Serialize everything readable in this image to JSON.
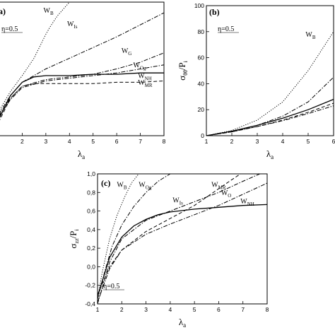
{
  "chart_data": [
    {
      "id": "a",
      "type": "line",
      "panel_label": "a)",
      "xlim": [
        1,
        8
      ],
      "ylim": [
        0,
        1
      ],
      "x_ticks": [
        "2",
        "3",
        "4",
        "5",
        "6",
        "7",
        "8"
      ],
      "y_ticks": [],
      "xlabel_main": "λ",
      "xlabel_sub": "a",
      "ylabel_main": "",
      "ylabel_sub": "",
      "annotation": "η=0.5",
      "series": [
        {
          "name": "W",
          "sub": "B",
          "style": "dotted",
          "label_at": [
            2.9,
            0.92
          ],
          "x": [
            1,
            1.5,
            2,
            2.5,
            3,
            3.2,
            3.5,
            3.8,
            4.0,
            4.2
          ],
          "y": [
            0.18,
            0.33,
            0.45,
            0.58,
            0.76,
            0.82,
            0.9,
            0.96,
            1.0,
            1.03
          ]
        },
        {
          "name": "W",
          "sub": "Is",
          "style": "dashdot",
          "label_at": [
            3.9,
            0.82
          ],
          "x": [
            1,
            1.5,
            2,
            3,
            4,
            5,
            6,
            7,
            8
          ],
          "y": [
            0.16,
            0.3,
            0.4,
            0.5,
            0.58,
            0.66,
            0.74,
            0.83,
            0.92
          ]
        },
        {
          "name": "W",
          "sub": "G",
          "style": "dashdot",
          "label_at": [
            6.2,
            0.62
          ],
          "x": [
            1,
            1.5,
            2,
            3,
            4,
            5,
            6,
            7,
            8
          ],
          "y": [
            0.15,
            0.28,
            0.37,
            0.42,
            0.44,
            0.46,
            0.5,
            0.55,
            0.62
          ]
        },
        {
          "name": "W",
          "sub": "Og",
          "style": "dashdot",
          "label_at": [
            6.7,
            0.51
          ],
          "x": [
            1,
            1.5,
            2,
            3,
            4,
            5,
            6,
            7,
            8
          ],
          "y": [
            0.14,
            0.27,
            0.36,
            0.41,
            0.43,
            0.45,
            0.47,
            0.5,
            0.53
          ]
        },
        {
          "name": "W",
          "sub": "NH",
          "style": "solid",
          "label_at": [
            6.9,
            0.43
          ],
          "x": [
            1,
            1.5,
            2,
            2.5,
            3,
            4,
            5,
            6,
            7,
            8
          ],
          "y": [
            0.12,
            0.3,
            0.4,
            0.44,
            0.45,
            0.45,
            0.46,
            0.46,
            0.47,
            0.47
          ]
        },
        {
          "name": "W",
          "sub": "MR",
          "style": "dashed",
          "label_at": [
            6.9,
            0.38
          ],
          "x": [
            1,
            1.5,
            2,
            2.5,
            3,
            4,
            5,
            6,
            7,
            8
          ],
          "y": [
            0.1,
            0.28,
            0.37,
            0.39,
            0.39,
            0.39,
            0.39,
            0.4,
            0.4,
            0.41
          ]
        }
      ]
    },
    {
      "id": "b",
      "type": "line",
      "panel_label": "(b)",
      "xlim": [
        1,
        6
      ],
      "ylim": [
        0,
        100
      ],
      "x_ticks": [
        "1",
        "2",
        "3",
        "4",
        "5",
        "6"
      ],
      "y_ticks": [
        "0",
        "20",
        "40",
        "60",
        "80",
        "100"
      ],
      "xlabel_main": "λ",
      "xlabel_sub": "a",
      "ylabel_main": "σ",
      "ylabel_sub": "θθ",
      "ylabel_div": "/P",
      "ylabel_div_sub": "i",
      "annotation": "η=0.5",
      "series": [
        {
          "name": "W",
          "sub": "B",
          "style": "dotted",
          "label_at": [
            4.9,
            76
          ],
          "x": [
            1,
            2,
            3,
            4,
            5,
            6
          ],
          "y": [
            0,
            4,
            12,
            26,
            50,
            80
          ]
        },
        {
          "name": "",
          "sub": "",
          "style": "dashdot",
          "x": [
            1,
            2,
            3,
            4,
            5,
            6
          ],
          "y": [
            0,
            3,
            8,
            15,
            26,
            45
          ]
        },
        {
          "name": "",
          "sub": "",
          "style": "solid",
          "x": [
            1,
            2,
            3,
            4,
            5,
            6
          ],
          "y": [
            0,
            3.5,
            8,
            13.5,
            20,
            28
          ]
        },
        {
          "name": "",
          "sub": "",
          "style": "dashed",
          "x": [
            1,
            2,
            3,
            4,
            5,
            6
          ],
          "y": [
            0,
            3,
            7,
            12,
            18,
            25
          ]
        },
        {
          "name": "",
          "sub": "",
          "style": "dashdot",
          "x": [
            1,
            2,
            3,
            4,
            5,
            6
          ],
          "y": [
            0,
            3,
            7,
            11.5,
            17,
            23
          ]
        }
      ]
    },
    {
      "id": "c",
      "type": "line",
      "panel_label": "(c)",
      "xlim": [
        1,
        8
      ],
      "ylim": [
        -0.4,
        1.0
      ],
      "x_ticks": [
        "1",
        "2",
        "3",
        "4",
        "5",
        "6",
        "7",
        "8"
      ],
      "y_ticks": [
        "-0,4",
        "-0,2",
        "0,0",
        "0,2",
        "0,4",
        "0,6",
        "0,8",
        "1,0"
      ],
      "xlabel_main": "λ",
      "xlabel_sub": "a",
      "ylabel_main": "σ",
      "ylabel_sub": "zz",
      "ylabel_div": "/P",
      "ylabel_div_sub": "i",
      "annotation": "η=0.5",
      "series": [
        {
          "name": "W",
          "sub": "B",
          "style": "dotted",
          "label_at": [
            1.8,
            0.86
          ],
          "x": [
            1,
            1.2,
            1.5,
            1.8,
            2.1,
            2.4,
            2.7
          ],
          "y": [
            -0.35,
            -0.05,
            0.3,
            0.55,
            0.74,
            0.9,
            1.0
          ]
        },
        {
          "name": "W",
          "sub": "Og",
          "style": "dashdot",
          "label_at": [
            2.7,
            0.86
          ],
          "x": [
            1,
            1.3,
            1.6,
            2,
            2.5,
            3,
            3.5,
            4.0
          ],
          "y": [
            -0.35,
            -0.05,
            0.22,
            0.45,
            0.65,
            0.8,
            0.92,
            1.0
          ]
        },
        {
          "name": "W",
          "sub": "Is",
          "style": "dashdot",
          "label_at": [
            4.1,
            0.69
          ],
          "x": [
            1,
            1.5,
            2,
            3,
            4,
            5,
            6,
            7,
            7.7
          ],
          "y": [
            -0.4,
            0.05,
            0.3,
            0.5,
            0.6,
            0.7,
            0.8,
            0.92,
            1.0
          ]
        },
        {
          "name": "W",
          "sub": "NH",
          "style": "solid",
          "label_at": [
            6.9,
            0.68
          ],
          "x": [
            1,
            1.5,
            2,
            2.5,
            3,
            3.5,
            4,
            5,
            6,
            7,
            8
          ],
          "y": [
            -0.32,
            0.1,
            0.32,
            0.44,
            0.51,
            0.56,
            0.59,
            0.62,
            0.64,
            0.66,
            0.67
          ]
        },
        {
          "name": "W",
          "sub": "MR",
          "style": "dashed",
          "label_at": [
            5.7,
            0.86
          ],
          "x": [
            1,
            1.5,
            2,
            3,
            4,
            5,
            5.5,
            6,
            6.5,
            6.9
          ],
          "y": [
            -0.3,
            0.0,
            0.18,
            0.38,
            0.52,
            0.66,
            0.75,
            0.84,
            0.93,
            1.0
          ]
        },
        {
          "name": "W",
          "sub": "O",
          "style": "dashdot",
          "label_at": [
            6.1,
            0.77
          ],
          "x": [
            1,
            1.5,
            2,
            3,
            4,
            5,
            6,
            7,
            8
          ],
          "y": [
            -0.38,
            -0.02,
            0.18,
            0.35,
            0.46,
            0.56,
            0.66,
            0.78,
            0.9
          ]
        }
      ]
    }
  ]
}
